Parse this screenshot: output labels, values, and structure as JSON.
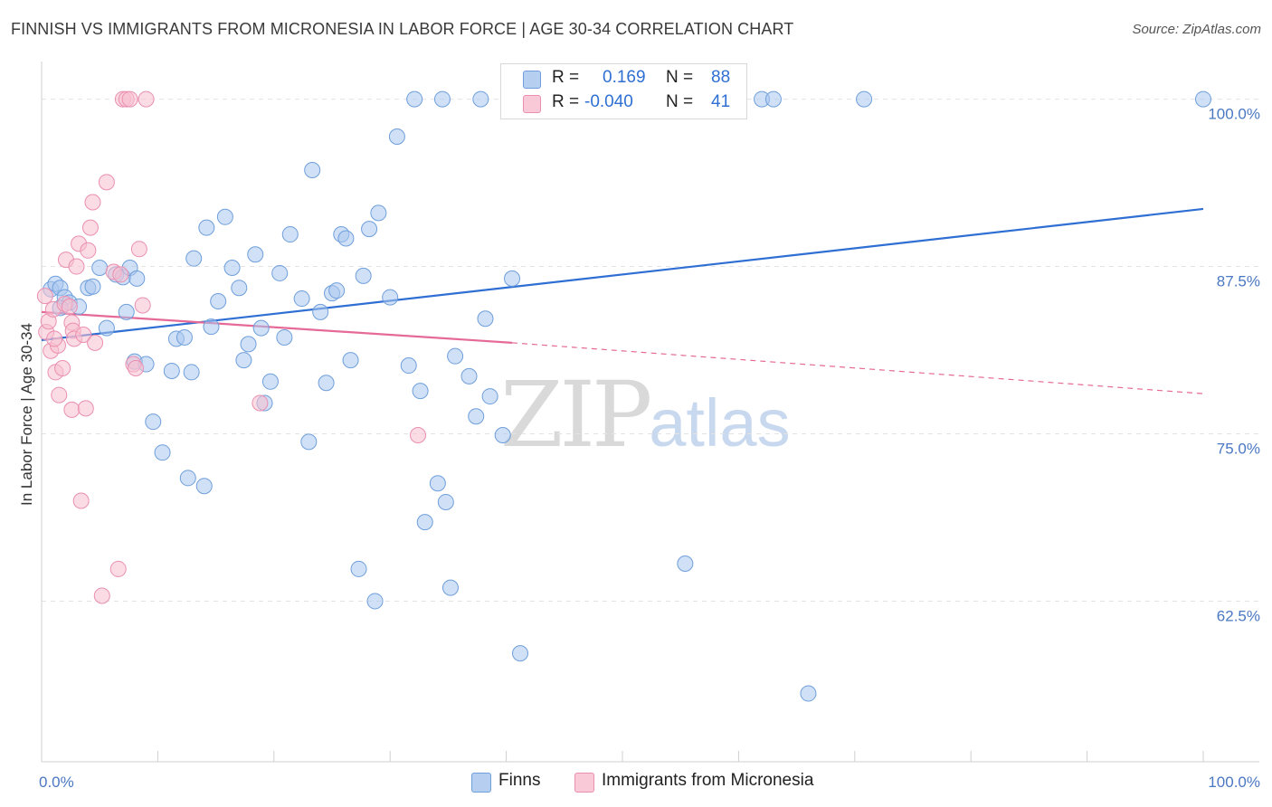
{
  "title": "FINNISH VS IMMIGRANTS FROM MICRONESIA IN LABOR FORCE | AGE 30-34 CORRELATION CHART",
  "source": "Source: ZipAtlas.com",
  "watermark": {
    "zip": "ZIP",
    "atlas": "atlas"
  },
  "legend": {
    "r_label": "R =",
    "n_label": "N =",
    "rows": [
      {
        "r": "0.169",
        "n": "88"
      },
      {
        "r": "-0.040",
        "n": "41"
      }
    ]
  },
  "colors": {
    "finns_fill": "#a9c6ee",
    "finns_stroke": "#6f9fdb",
    "finns_line": "#2f6fd3",
    "micro_fill": "#f7bfd0",
    "micro_stroke": "#ea8fb0",
    "micro_line": "#e56a97",
    "tick_text": "#4a78c2",
    "grid": "#e3e3e3"
  },
  "chart_data": {
    "type": "scatter",
    "title": "FINNISH VS IMMIGRANTS FROM MICRONESIA IN LABOR FORCE | AGE 30-34 CORRELATION CHART",
    "xlabel": "",
    "ylabel": "In Labor Force | Age 30-34",
    "xlim": [
      0,
      100
    ],
    "ylim": [
      50.5,
      102
    ],
    "x_tick_labels": [
      "0.0%",
      "100.0%"
    ],
    "y_ticks": [
      62.5,
      75.0,
      87.5,
      100.0
    ],
    "y_tick_labels": [
      "62.5%",
      "75.0%",
      "87.5%",
      "100.0%"
    ],
    "grid": true,
    "legend_position": "top-center",
    "series": [
      {
        "name": "Finns",
        "r": 0.169,
        "n": 88,
        "trend": {
          "x": [
            0,
            100
          ],
          "y": [
            82.0,
            91.8
          ],
          "style": "solid"
        },
        "points": [
          [
            0.8,
            85.8
          ],
          [
            1.2,
            86.2
          ],
          [
            1.6,
            85.9
          ],
          [
            2.0,
            85.2
          ],
          [
            2.4,
            84.8
          ],
          [
            3.2,
            84.5
          ],
          [
            4.0,
            85.9
          ],
          [
            4.4,
            86.0
          ],
          [
            5.0,
            87.4
          ],
          [
            5.6,
            82.9
          ],
          [
            6.4,
            86.9
          ],
          [
            7.0,
            86.7
          ],
          [
            7.6,
            87.4
          ],
          [
            8.2,
            86.6
          ],
          [
            7.3,
            84.1
          ],
          [
            8.0,
            80.4
          ],
          [
            9.0,
            80.2
          ],
          [
            9.6,
            75.9
          ],
          [
            10.4,
            73.6
          ],
          [
            11.2,
            79.7
          ],
          [
            11.6,
            82.1
          ],
          [
            12.3,
            82.2
          ],
          [
            12.6,
            71.7
          ],
          [
            12.9,
            79.6
          ],
          [
            13.1,
            88.1
          ],
          [
            14.0,
            71.1
          ],
          [
            14.2,
            90.4
          ],
          [
            14.6,
            83.0
          ],
          [
            15.2,
            84.9
          ],
          [
            15.8,
            91.2
          ],
          [
            16.4,
            87.4
          ],
          [
            17.0,
            85.9
          ],
          [
            17.4,
            80.5
          ],
          [
            17.8,
            81.7
          ],
          [
            18.4,
            88.4
          ],
          [
            18.9,
            82.9
          ],
          [
            19.2,
            77.3
          ],
          [
            19.7,
            78.9
          ],
          [
            20.5,
            87.0
          ],
          [
            20.9,
            82.2
          ],
          [
            21.4,
            89.9
          ],
          [
            22.4,
            85.1
          ],
          [
            23.0,
            74.4
          ],
          [
            23.3,
            94.7
          ],
          [
            24.0,
            84.1
          ],
          [
            24.5,
            78.8
          ],
          [
            25.0,
            85.5
          ],
          [
            25.4,
            85.7
          ],
          [
            25.8,
            89.9
          ],
          [
            26.2,
            89.6
          ],
          [
            26.6,
            80.5
          ],
          [
            27.3,
            64.9
          ],
          [
            27.7,
            86.8
          ],
          [
            28.2,
            90.3
          ],
          [
            28.7,
            62.5
          ],
          [
            29.0,
            91.5
          ],
          [
            30.0,
            85.2
          ],
          [
            30.6,
            97.2
          ],
          [
            31.6,
            80.1
          ],
          [
            32.1,
            100.0
          ],
          [
            32.6,
            78.2
          ],
          [
            33.0,
            68.4
          ],
          [
            34.1,
            71.3
          ],
          [
            34.5,
            100.0
          ],
          [
            34.8,
            69.9
          ],
          [
            35.2,
            63.5
          ],
          [
            35.6,
            80.8
          ],
          [
            36.8,
            79.3
          ],
          [
            37.4,
            76.3
          ],
          [
            37.8,
            100.0
          ],
          [
            38.2,
            83.6
          ],
          [
            38.6,
            77.8
          ],
          [
            39.7,
            74.9
          ],
          [
            40.5,
            86.6
          ],
          [
            41.2,
            58.6
          ],
          [
            42.0,
            100.0
          ],
          [
            44.0,
            100.0
          ],
          [
            47.0,
            100.0
          ],
          [
            49.0,
            100.0
          ],
          [
            53.0,
            100.0
          ],
          [
            55.4,
            65.3
          ],
          [
            60.0,
            100.0
          ],
          [
            62.0,
            100.0
          ],
          [
            63.0,
            100.0
          ],
          [
            66.0,
            55.6
          ],
          [
            70.8,
            100.0
          ],
          [
            100.0,
            100.0
          ],
          [
            1.6,
            84.4
          ]
        ]
      },
      {
        "name": "Immigrants from Micronesia",
        "r": -0.04,
        "n": 41,
        "trend": {
          "x": [
            0,
            40.5,
            100
          ],
          "y": [
            84.1,
            81.8,
            78.0
          ],
          "style": "solid then dashed"
        },
        "points": [
          [
            0.4,
            82.6
          ],
          [
            0.6,
            83.4
          ],
          [
            0.8,
            81.2
          ],
          [
            1.0,
            84.3
          ],
          [
            1.2,
            79.6
          ],
          [
            1.4,
            81.6
          ],
          [
            1.5,
            77.9
          ],
          [
            1.8,
            79.9
          ],
          [
            2.0,
            84.7
          ],
          [
            2.1,
            88.0
          ],
          [
            2.4,
            84.5
          ],
          [
            2.6,
            83.3
          ],
          [
            2.7,
            82.7
          ],
          [
            2.6,
            76.8
          ],
          [
            2.8,
            82.1
          ],
          [
            3.0,
            87.5
          ],
          [
            3.2,
            89.2
          ],
          [
            3.4,
            70.0
          ],
          [
            3.6,
            82.4
          ],
          [
            3.8,
            76.9
          ],
          [
            4.0,
            88.7
          ],
          [
            4.2,
            90.4
          ],
          [
            4.4,
            92.3
          ],
          [
            4.6,
            81.8
          ],
          [
            5.2,
            62.9
          ],
          [
            5.6,
            93.8
          ],
          [
            6.2,
            87.1
          ],
          [
            6.6,
            64.9
          ],
          [
            6.8,
            86.9
          ],
          [
            7.0,
            100.0
          ],
          [
            7.3,
            100.0
          ],
          [
            7.6,
            100.0
          ],
          [
            7.9,
            80.2
          ],
          [
            8.1,
            79.9
          ],
          [
            8.4,
            88.8
          ],
          [
            8.7,
            84.6
          ],
          [
            9.0,
            100.0
          ],
          [
            18.8,
            77.3
          ],
          [
            32.4,
            74.9
          ],
          [
            0.3,
            85.3
          ],
          [
            1.1,
            82.1
          ]
        ]
      }
    ]
  },
  "bottom_legend": {
    "finns": "Finns",
    "micro": "Immigrants from Micronesia"
  }
}
